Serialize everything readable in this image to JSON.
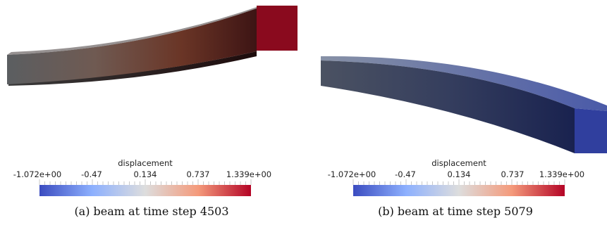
{
  "panels": [
    {
      "id": "a",
      "caption": "(a) beam at time step 4503",
      "colorbar": {
        "title": "displacement",
        "ticks": [
          "-1.072e+00",
          "-0.47",
          "0.134",
          "0.737",
          "1.339e+00"
        ]
      },
      "colors": {
        "root": "#595d60",
        "tip": "#830a1f",
        "tip_face": "#8a0a1e"
      }
    },
    {
      "id": "b",
      "caption": "(b) beam at time step 5079",
      "colorbar": {
        "title": "displacement",
        "ticks": [
          "-1.072e+00",
          "-0.47",
          "0.134",
          "0.737",
          "1.339e+00"
        ]
      },
      "colors": {
        "root": "#4a5466",
        "tip": "#1b2555",
        "tip_face": "#303f9e"
      }
    }
  ],
  "colormap": {
    "range": [
      -1.072,
      1.339
    ],
    "stops": [
      "#3b4cc0",
      "#8db0fe",
      "#dddddd",
      "#f49a7b",
      "#b40426"
    ]
  }
}
